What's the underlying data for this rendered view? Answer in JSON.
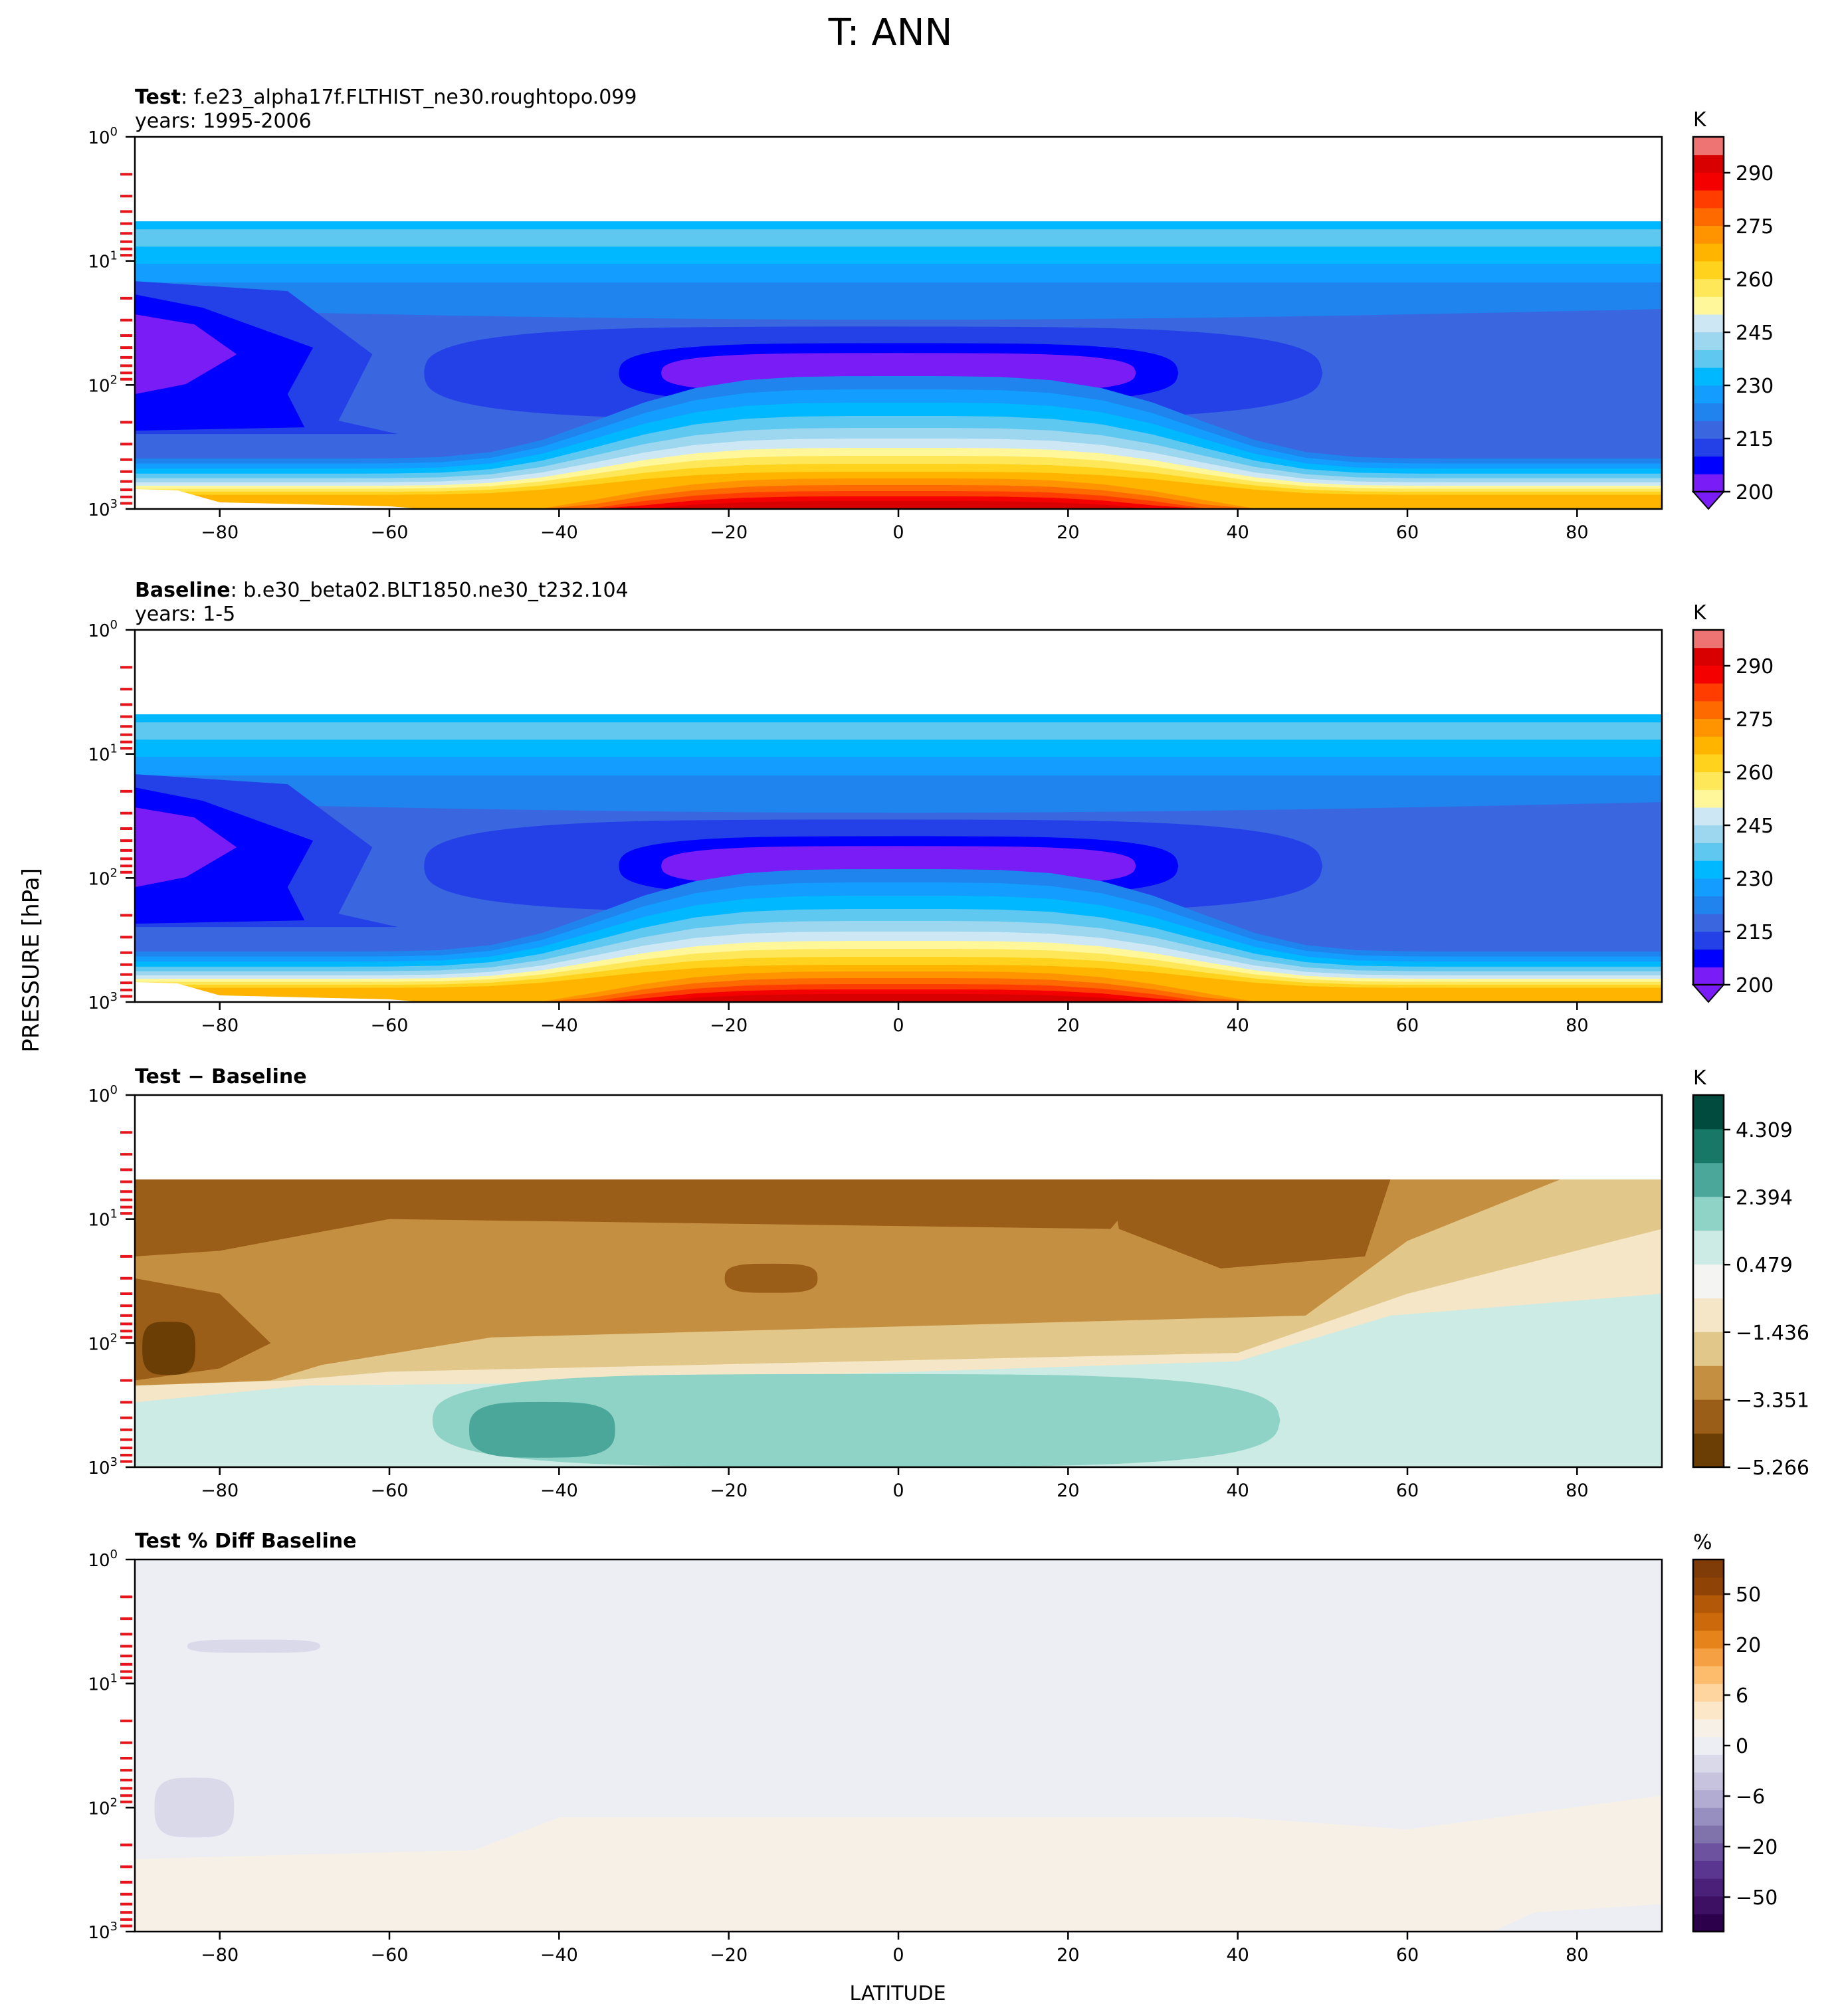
{
  "figure": {
    "title": "T: ANN",
    "ylabel": "PRESSURE [hPa]",
    "xlabel": "LATITUDE"
  },
  "chart_data": [
    {
      "type": "contourf",
      "title_bold": "Test",
      "title_rest": ": f.e23_alpha17f.FLTHIST_ne30.roughtopo.099",
      "subtitle": "years: 1995-2006",
      "x_ticks": [
        "−80",
        "−60",
        "−40",
        "−20",
        "0",
        "20",
        "40",
        "60",
        "80"
      ],
      "x_tick_values": [
        -80,
        -60,
        -40,
        -20,
        0,
        20,
        40,
        60,
        80
      ],
      "xlim": [
        -90,
        90
      ],
      "y_scale": "log",
      "y_inverted": true,
      "ylim": [
        1000,
        1
      ],
      "y_ticks": [
        {
          "base": "10",
          "exp": "0",
          "value": 1
        },
        {
          "base": "10",
          "exp": "1",
          "value": 10
        },
        {
          "base": "10",
          "exp": "2",
          "value": 100
        },
        {
          "base": "10",
          "exp": "3",
          "value": 1000
        }
      ],
      "model_top_hPa": 4.8,
      "colorbar": {
        "unit": "K",
        "ticks": [
          "290",
          "275",
          "260",
          "245",
          "230",
          "215",
          "200"
        ],
        "range": [
          200,
          295
        ],
        "extend": "min",
        "colors": [
          "#7a1cf5",
          "#0000ff",
          "#2441e8",
          "#3a66e0",
          "#1f84ee",
          "#139eff",
          "#00b8ff",
          "#5ec8f0",
          "#9cd6ef",
          "#cde8f4",
          "#fff799",
          "#ffe75a",
          "#ffd21e",
          "#ffb400",
          "#ff9300",
          "#ff6a00",
          "#ff3d00",
          "#f50000",
          "#d80000",
          "#ee7474"
        ]
      },
      "field": {
        "description": "annual-mean zonal-mean temperature",
        "surface_max_K": 295,
        "tropopause_min_K": 200,
        "polar_stratosphere_min_K": 200
      }
    },
    {
      "type": "contourf",
      "title_bold": "Baseline",
      "title_rest": ": b.e30_beta02.BLT1850.ne30_t232.104",
      "subtitle": "years: 1-5",
      "x_ticks": [
        "−80",
        "−60",
        "−40",
        "−20",
        "0",
        "20",
        "40",
        "60",
        "80"
      ],
      "x_tick_values": [
        -80,
        -60,
        -40,
        -20,
        0,
        20,
        40,
        60,
        80
      ],
      "xlim": [
        -90,
        90
      ],
      "y_scale": "log",
      "y_inverted": true,
      "ylim": [
        1000,
        1
      ],
      "y_ticks": [
        {
          "base": "10",
          "exp": "0",
          "value": 1
        },
        {
          "base": "10",
          "exp": "1",
          "value": 10
        },
        {
          "base": "10",
          "exp": "2",
          "value": 100
        },
        {
          "base": "10",
          "exp": "3",
          "value": 1000
        }
      ],
      "model_top_hPa": 4.8,
      "colorbar": {
        "unit": "K",
        "ticks": [
          "290",
          "275",
          "260",
          "245",
          "230",
          "215",
          "200"
        ],
        "range": [
          200,
          295
        ],
        "extend": "min",
        "colors": [
          "#7a1cf5",
          "#0000ff",
          "#2441e8",
          "#3a66e0",
          "#1f84ee",
          "#139eff",
          "#00b8ff",
          "#5ec8f0",
          "#9cd6ef",
          "#cde8f4",
          "#fff799",
          "#ffe75a",
          "#ffd21e",
          "#ffb400",
          "#ff9300",
          "#ff6a00",
          "#ff3d00",
          "#f50000",
          "#d80000",
          "#ee7474"
        ]
      }
    },
    {
      "type": "contourf",
      "title_bold": "Test − Baseline",
      "title_rest": "",
      "subtitle": "",
      "x_ticks": [
        "−80",
        "−60",
        "−40",
        "−20",
        "0",
        "20",
        "40",
        "60",
        "80"
      ],
      "x_tick_values": [
        -80,
        -60,
        -40,
        -20,
        0,
        20,
        40,
        60,
        80
      ],
      "xlim": [
        -90,
        90
      ],
      "y_scale": "log",
      "y_inverted": true,
      "ylim": [
        1000,
        1
      ],
      "y_ticks": [
        {
          "base": "10",
          "exp": "0",
          "value": 1
        },
        {
          "base": "10",
          "exp": "1",
          "value": 10
        },
        {
          "base": "10",
          "exp": "2",
          "value": 100
        },
        {
          "base": "10",
          "exp": "3",
          "value": 1000
        }
      ],
      "model_top_hPa": 4.8,
      "colorbar": {
        "unit": "K",
        "ticks": [
          "4.309",
          "2.394",
          "0.479",
          "−1.436",
          "−3.351",
          "−5.266"
        ],
        "range": [
          -5.266,
          5.266
        ],
        "colors": [
          "#6b3e06",
          "#9b5e18",
          "#c58f42",
          "#e1c88a",
          "#f4e6c6",
          "#f4f4f2",
          "#cdebe5",
          "#8fd3c6",
          "#4aa79a",
          "#177868",
          "#014a3e"
        ]
      }
    },
    {
      "type": "contourf",
      "title_bold": "Test % Diff Baseline",
      "title_rest": "",
      "subtitle": "",
      "x_ticks": [
        "−80",
        "−60",
        "−40",
        "−20",
        "0",
        "20",
        "40",
        "60",
        "80"
      ],
      "x_tick_values": [
        -80,
        -60,
        -40,
        -20,
        0,
        20,
        40,
        60,
        80
      ],
      "xlim": [
        -90,
        90
      ],
      "y_scale": "log",
      "y_inverted": true,
      "ylim": [
        1000,
        1
      ],
      "y_ticks": [
        {
          "base": "10",
          "exp": "0",
          "value": 1
        },
        {
          "base": "10",
          "exp": "1",
          "value": 10
        },
        {
          "base": "10",
          "exp": "2",
          "value": 100
        },
        {
          "base": "10",
          "exp": "3",
          "value": 1000
        }
      ],
      "colorbar": {
        "unit": "%",
        "ticks": [
          "50",
          "20",
          "6",
          "0",
          "−6",
          "−20",
          "−50"
        ],
        "range": [
          -100,
          100
        ],
        "colors": [
          "#2d004b",
          "#3d1064",
          "#4b2079",
          "#5a3690",
          "#6c529f",
          "#8073ac",
          "#978fbf",
          "#b2abd2",
          "#c7c3df",
          "#dad9ea",
          "#eceef3",
          "#f7f0e6",
          "#fde7c9",
          "#fed49f",
          "#fdbb6c",
          "#f5a042",
          "#e6841b",
          "#cc6a0b",
          "#b35806",
          "#8f4304",
          "#7f3b08"
        ]
      }
    }
  ]
}
